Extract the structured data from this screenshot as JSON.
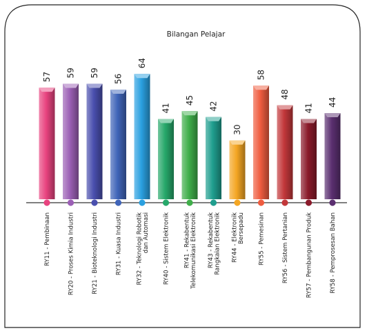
{
  "chart_data": {
    "type": "bar",
    "title": "Bilangan Pelajar",
    "xlabel": "",
    "ylabel": "",
    "ylim": [
      0,
      70
    ],
    "grid": false,
    "legend": "none",
    "categories": [
      [
        "RY11 - Pembinaan"
      ],
      [
        "RY20 - Proses Kimia Industri"
      ],
      [
        "RY21 - Bioteknologi Industri"
      ],
      [
        "RY31 - Kuasa Industri"
      ],
      [
        "RY32 - Teknologi Robotik",
        "dan Automasi"
      ],
      [
        "RY40 - Sistem Elektronik"
      ],
      [
        "RY41 - Rekabentuk",
        "Telekomunikasi Elektronik"
      ],
      [
        "RY43 - Rekabentuk",
        "Rangkaian Elektronik"
      ],
      [
        "RY44 - Elektronik",
        "Bersepadu"
      ],
      [
        "RY55 - Pemesinan"
      ],
      [
        "RY56 - Sistem Pertanian"
      ],
      [
        "RY57 - Pembangunan Produk"
      ],
      [
        "RY58 - Pemprosesan Bahan"
      ]
    ],
    "values": [
      57,
      59,
      59,
      56,
      64,
      41,
      45,
      42,
      30,
      58,
      48,
      41,
      44
    ],
    "colors": [
      "#e8437f",
      "#9b5fb5",
      "#4a4fae",
      "#3f64b8",
      "#2aa0e0",
      "#26a86a",
      "#3fae4a",
      "#1f9e8e",
      "#f4a623",
      "#ef5c3f",
      "#c2373a",
      "#8a1a2a",
      "#5b2f70"
    ]
  }
}
